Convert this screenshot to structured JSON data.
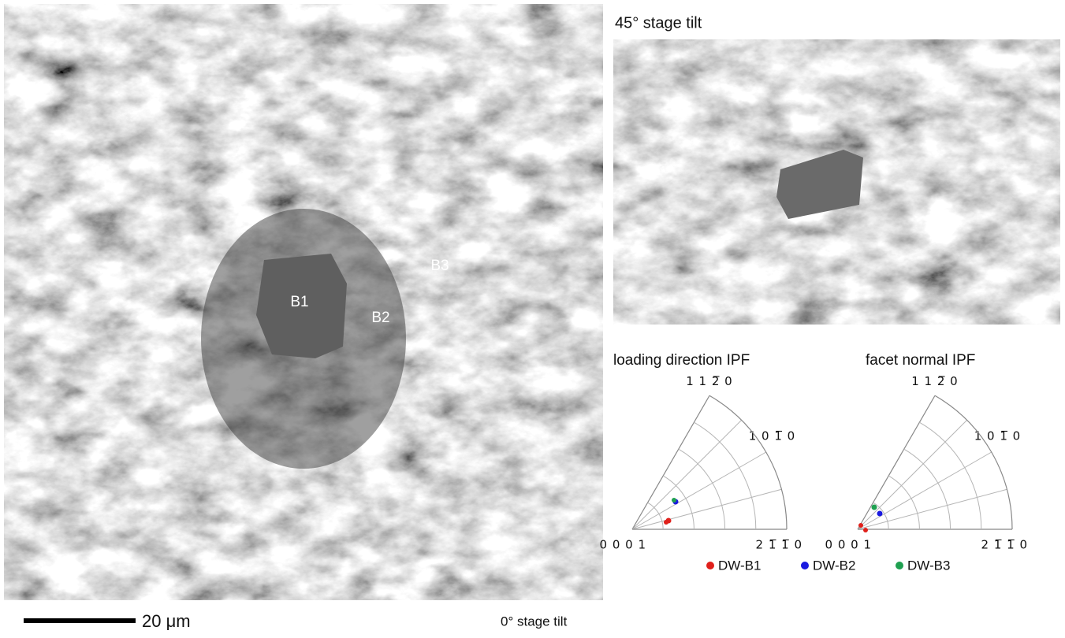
{
  "figure": {
    "tilted_view": {
      "title": "45° stage tilt"
    },
    "main_view": {
      "labels": [
        "B1",
        "B2",
        "B3"
      ],
      "caption": "0° stage tilt",
      "scale_bar": "20 μm"
    },
    "ipf": [
      {
        "title": "loading direction IPF",
        "poles": {
          "top": "1 1 2̅ 0",
          "middle": "1 0 1̅ 0",
          "origin": "0 0 0 1",
          "right": "2 1̅ 1̅ 0"
        }
      },
      {
        "title": "facet normal IPF",
        "poles": {
          "top": "1 1 2̅ 0",
          "middle": "1 0 1̅ 0",
          "origin": "0 0 0 1",
          "right": "2 1̅ 1̅ 0"
        }
      }
    ],
    "legend": [
      "DW-B1",
      "DW-B2",
      "DW-B3"
    ]
  }
}
